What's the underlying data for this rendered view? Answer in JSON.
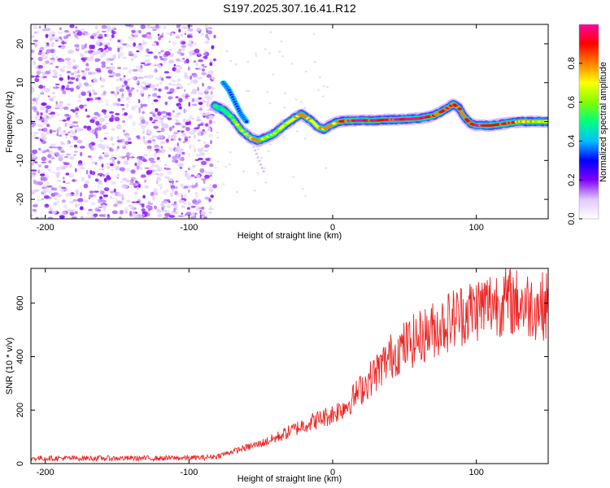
{
  "title": "S197.2025.307.16.41.R12",
  "chart_data": [
    {
      "type": "heatmap",
      "xlabel": "Height of straight line (km)",
      "ylabel": "Frequency (Hz)",
      "xlim": [
        -210,
        150
      ],
      "ylim": [
        -25,
        25
      ],
      "xticks": [
        -200,
        -100,
        0,
        100
      ],
      "xtick_labels": [
        "-200",
        "-100",
        "0",
        "100"
      ],
      "yticks": [
        -20,
        -10,
        0,
        10,
        20
      ],
      "ytick_labels": [
        "-20",
        "-10",
        "0",
        "10",
        "20"
      ],
      "colorbar": {
        "label": "Normalized spectral amplitude",
        "range": [
          0,
          1
        ],
        "ticks": [
          0.0,
          0.2,
          0.4,
          0.6,
          0.8
        ],
        "tick_labels": [
          "0.0",
          "0.2",
          "0.4",
          "0.6",
          "0.8"
        ],
        "colormap": [
          "#ffffff",
          "#e0c8ff",
          "#8000ff",
          "#0000ff",
          "#00c0ff",
          "#00ff80",
          "#80ff00",
          "#ffff00",
          "#ff8000",
          "#ff0000",
          "#ff00a0"
        ]
      },
      "noise_region_x": [
        -210,
        -82
      ],
      "ridge": {
        "x": [
          -82,
          -76,
          -70,
          -64,
          -58,
          -52,
          -46,
          -40,
          -34,
          -28,
          -22,
          -18,
          -14,
          -10,
          -6,
          -2,
          4,
          10,
          20,
          30,
          40,
          50,
          60,
          70,
          78,
          84,
          88,
          92,
          96,
          100,
          110,
          120,
          130,
          140,
          150
        ],
        "frequency": [
          4,
          3,
          1,
          -2,
          -4,
          -5,
          -4,
          -3,
          -1,
          0.5,
          2,
          1,
          0,
          -1.5,
          -2,
          -1,
          0,
          0.2,
          0.3,
          0.3,
          0.5,
          0.6,
          0.8,
          1.5,
          3,
          4.5,
          3.5,
          1,
          -0.5,
          -1,
          -1,
          -0.5,
          0,
          0,
          0
        ],
        "amplitude": [
          0.45,
          0.5,
          0.55,
          0.6,
          0.65,
          0.7,
          0.6,
          0.6,
          0.65,
          0.7,
          0.75,
          0.7,
          0.7,
          0.72,
          0.75,
          0.75,
          0.78,
          0.85,
          0.88,
          0.9,
          0.88,
          0.9,
          0.92,
          0.88,
          0.85,
          0.8,
          0.8,
          0.82,
          0.85,
          0.88,
          0.9,
          0.85,
          0.75,
          0.7,
          0.65
        ]
      },
      "upper_branch": {
        "x": [
          -76,
          -72,
          -68,
          -64,
          -60
        ],
        "frequency": [
          10,
          8,
          5,
          2,
          0
        ]
      }
    },
    {
      "type": "line",
      "xlabel": "Height of straight line (km)",
      "ylabel": "SNR (10 * v/v)",
      "xlim": [
        -210,
        150
      ],
      "ylim": [
        0,
        730
      ],
      "xticks": [
        -200,
        -100,
        0,
        100
      ],
      "xtick_labels": [
        "-200",
        "-100",
        "0",
        "100"
      ],
      "yticks": [
        0,
        200,
        400,
        600
      ],
      "ytick_labels": [
        "0",
        "200",
        "400",
        "600"
      ],
      "line_color": "#ee2222",
      "series": [
        {
          "name": "SNR",
          "x": [
            -210,
            -180,
            -150,
            -120,
            -90,
            -80,
            -70,
            -60,
            -50,
            -40,
            -30,
            -20,
            -10,
            0,
            10,
            20,
            30,
            40,
            50,
            60,
            70,
            80,
            90,
            100,
            110,
            120,
            130,
            140,
            150
          ],
          "values": [
            20,
            20,
            20,
            20,
            22,
            28,
            45,
            60,
            75,
            95,
            120,
            145,
            165,
            185,
            220,
            280,
            340,
            400,
            440,
            470,
            500,
            530,
            560,
            580,
            600,
            610,
            600,
            590,
            590
          ]
        }
      ]
    }
  ]
}
